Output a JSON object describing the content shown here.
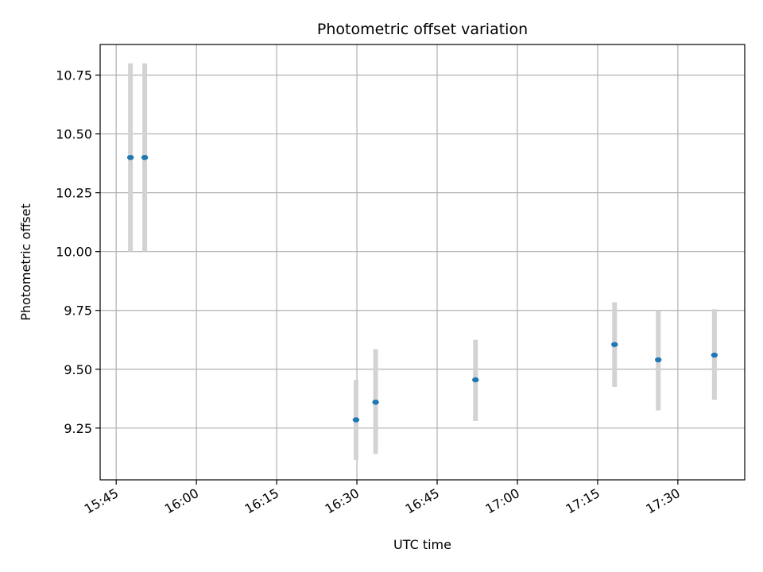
{
  "chart_data": {
    "type": "scatter",
    "title": "Photometric offset variation",
    "xlabel": "UTC time",
    "ylabel": "Photometric offset",
    "x_tick_labels": [
      "15:45",
      "16:00",
      "16:15",
      "16:30",
      "16:45",
      "17:00",
      "17:15",
      "17:30"
    ],
    "x_ticks_minutes": [
      945,
      960,
      975,
      990,
      1005,
      1020,
      1035,
      1050
    ],
    "xlim_minutes": [
      942,
      1062.5
    ],
    "y_ticks": [
      "9.25",
      "9.50",
      "9.75",
      "10.00",
      "10.25",
      "10.50",
      "10.75"
    ],
    "ylim": [
      9.03,
      10.88
    ],
    "grid": true,
    "colors": {
      "point": "#1f77b4",
      "errorbar": "#d3d3d3",
      "grid": "#b0b0b0"
    },
    "points": [
      {
        "x": "15:47:40",
        "y": 10.4,
        "err_low": 10.0,
        "err_high": 10.8
      },
      {
        "x": "15:50:20",
        "y": 10.4,
        "err_low": 10.0,
        "err_high": 10.8
      },
      {
        "x": "16:29:50",
        "y": 9.285,
        "err_low": 9.115,
        "err_high": 9.455
      },
      {
        "x": "16:33:30",
        "y": 9.36,
        "err_low": 9.14,
        "err_high": 9.585
      },
      {
        "x": "16:52:10",
        "y": 9.455,
        "err_low": 9.28,
        "err_high": 9.625
      },
      {
        "x": "17:18:10",
        "y": 9.605,
        "err_low": 9.425,
        "err_high": 9.785
      },
      {
        "x": "17:26:20",
        "y": 9.54,
        "err_low": 9.325,
        "err_high": 9.75
      },
      {
        "x": "17:36:50",
        "y": 9.56,
        "err_low": 9.37,
        "err_high": 9.755
      }
    ]
  }
}
